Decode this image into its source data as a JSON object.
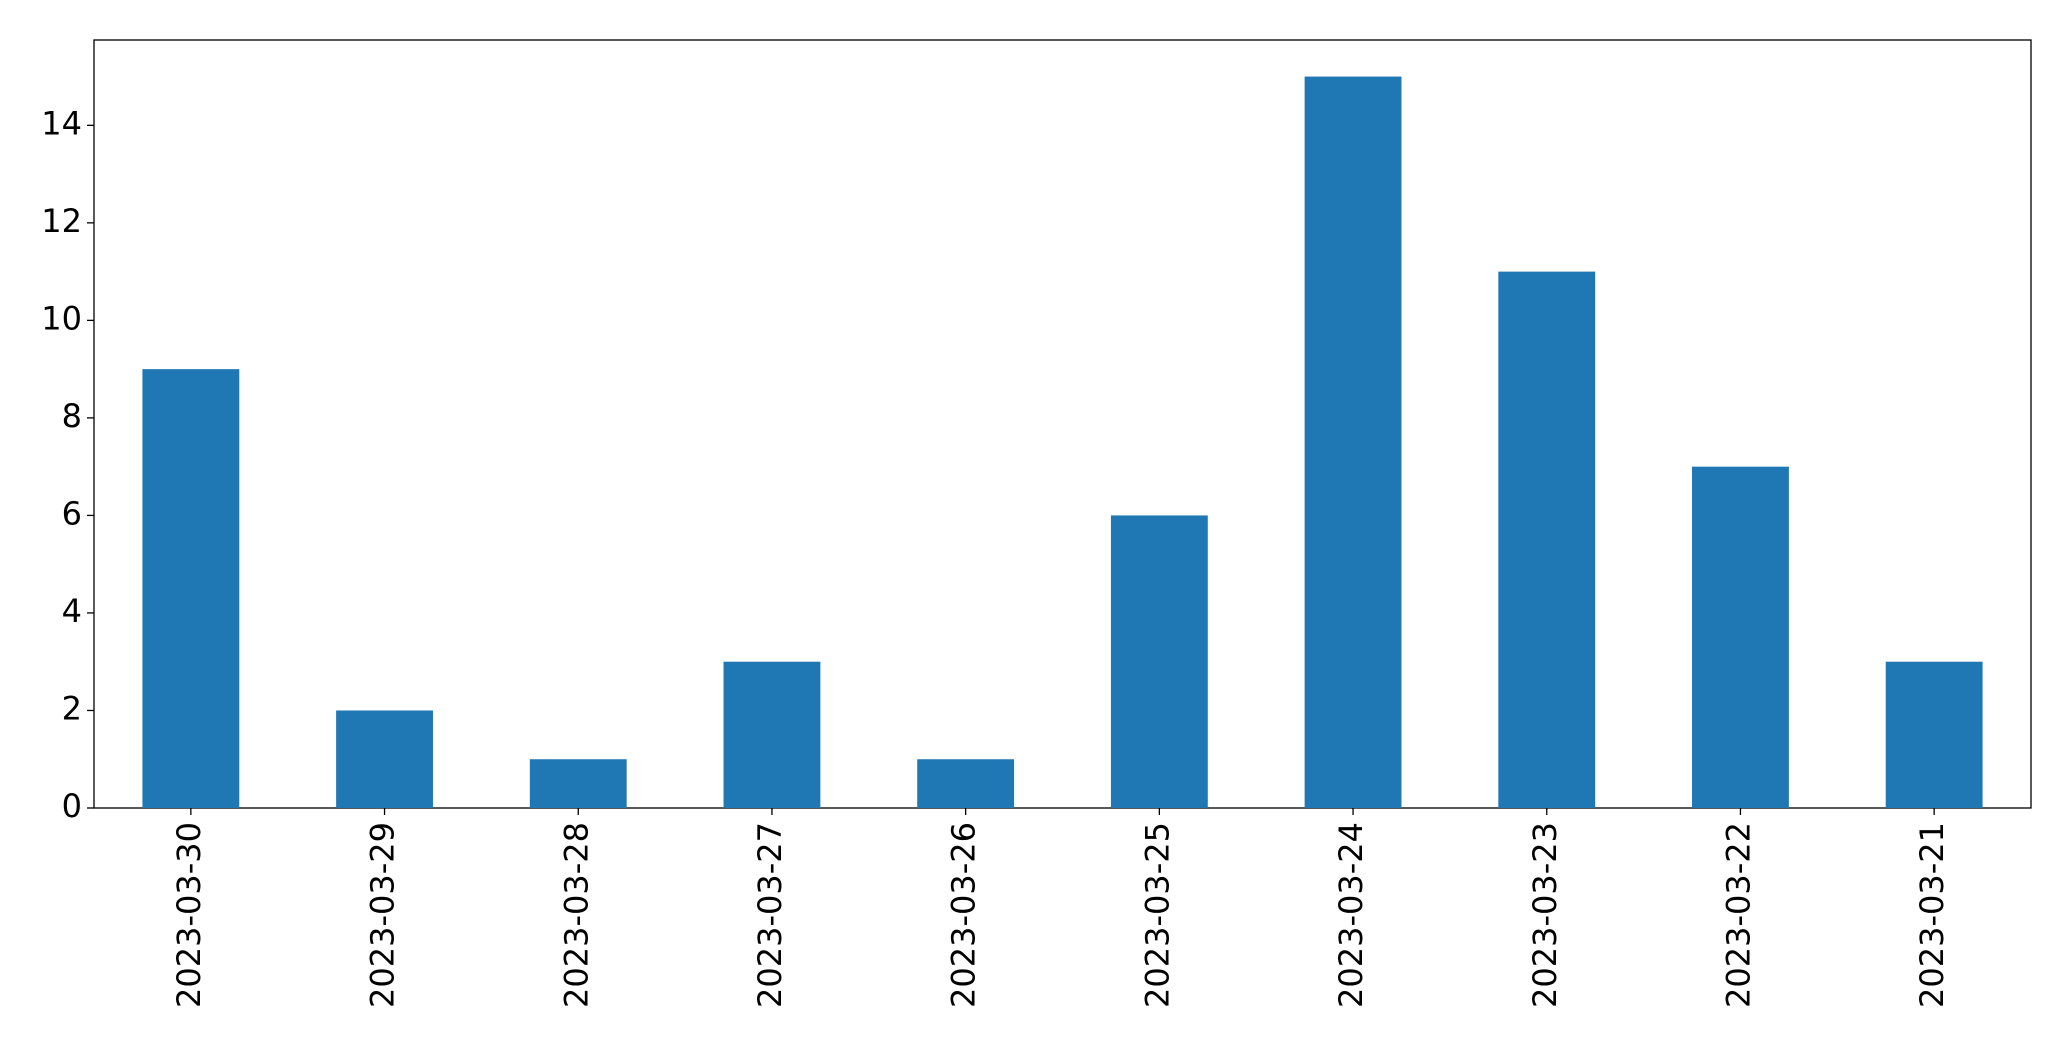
{
  "chart_data": {
    "type": "bar",
    "categories": [
      "2023-03-30",
      "2023-03-29",
      "2023-03-28",
      "2023-03-27",
      "2023-03-26",
      "2023-03-25",
      "2023-03-24",
      "2023-03-23",
      "2023-03-22",
      "2023-03-21"
    ],
    "values": [
      9,
      2,
      1,
      3,
      1,
      6,
      15,
      11,
      7,
      3
    ],
    "color": "#1f77b4",
    "ylim": [
      0,
      15.75
    ],
    "yticks": [
      0,
      2,
      4,
      6,
      8,
      10,
      12,
      14
    ],
    "grid": false
  }
}
